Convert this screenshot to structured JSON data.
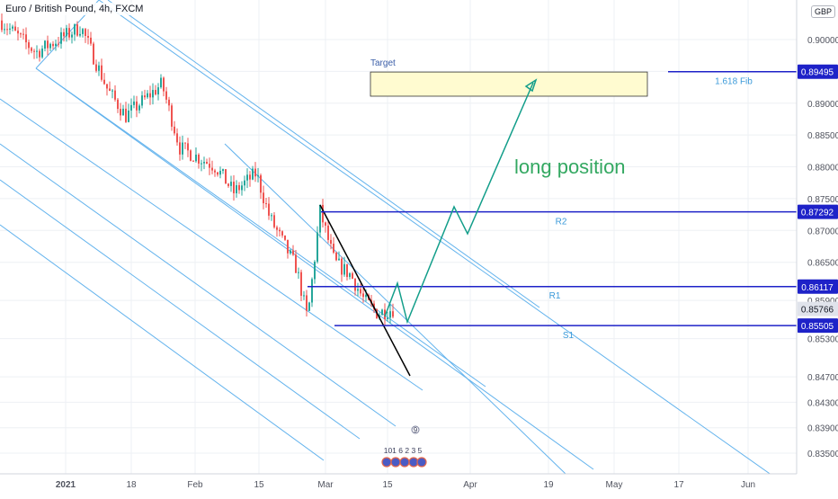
{
  "header": {
    "title": "Euro / British Pound, 4h, FXCM",
    "currency": "GBP"
  },
  "colors": {
    "up": "#26a69a",
    "down": "#ef5350",
    "channel": "#63b3ed",
    "level": "#1e22c8",
    "projection": "#139e8a",
    "trendline": "#000000",
    "target_fill": "#fffbd0",
    "target_border": "#333333",
    "label_text": "#3b9ad9",
    "annotation_text": "#33a861"
  },
  "chart_data": {
    "type": "candlestick",
    "symbol": "Euro / British Pound",
    "interval": "4h",
    "source": "FXCM",
    "currency": "GBP",
    "x_ticks": [
      "2021",
      "18",
      "Feb",
      "15",
      "Mar",
      "15",
      "Apr",
      "19",
      "May",
      "17",
      "Jun"
    ],
    "y_ticks": [
      "0.90000",
      "0.89500",
      "0.89000",
      "0.88500",
      "0.88000",
      "0.87500",
      "0.87000",
      "0.86500",
      "0.85900",
      "0.85300",
      "0.84700",
      "0.84300",
      "0.83900",
      "0.83500"
    ],
    "ylim": [
      0.8336,
      0.9065
    ],
    "price_tags": [
      {
        "value": 0.89495,
        "label": "0.89495"
      },
      {
        "value": 0.87292,
        "label": "0.87292"
      },
      {
        "value": 0.86117,
        "label": "0.86117"
      },
      {
        "value": 0.85505,
        "label": "0.85505"
      }
    ],
    "current_price": {
      "value": 0.85766,
      "label": "0.85766"
    },
    "levels": [
      {
        "name": "R2",
        "value": 0.87292
      },
      {
        "name": "R1",
        "value": 0.86117
      },
      {
        "name": "S1",
        "value": 0.85505
      },
      {
        "name": "1.618 Fib",
        "value": 0.89495
      }
    ],
    "target_zone": {
      "label": "Target",
      "top": 0.8949,
      "bottom": 0.8911
    },
    "annotation": "long position",
    "event_icon": {
      "top": "9",
      "middle": "101 6 2 3 5"
    },
    "grid": true
  }
}
